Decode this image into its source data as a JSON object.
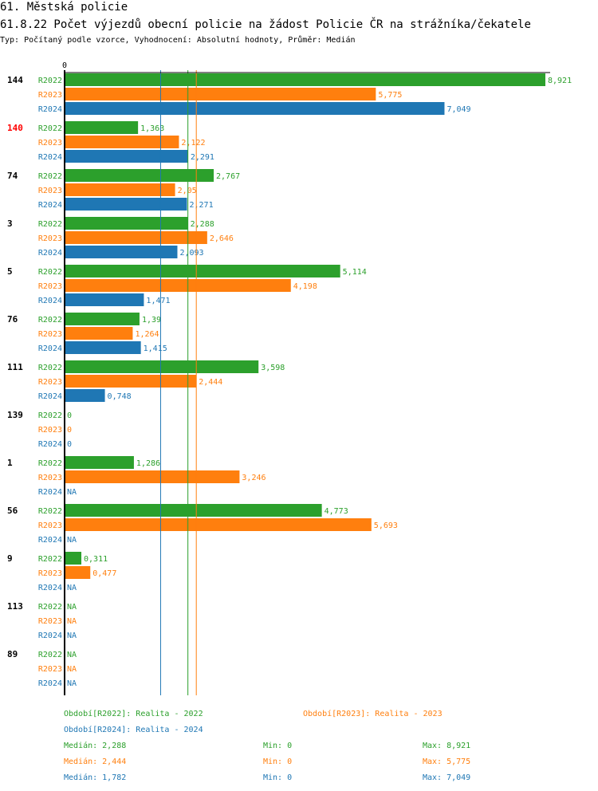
{
  "chart_data": {
    "type": "bar",
    "orientation": "horizontal",
    "title": "61. Městská policie",
    "subtitle": "61.8.22 Počet výjezdů obecní policie na žádost Policie ČR na strážníka/čekatele",
    "description": "Typ: Počítaný podle vzorce, Vyhodnocení: Absolutní hodnoty, Průměr: Medián",
    "axis_zero_label": "0",
    "xlim": [
      0,
      8.921
    ],
    "categories": [
      "144",
      "140",
      "74",
      "3",
      "5",
      "76",
      "111",
      "139",
      "1",
      "56",
      "9",
      "113",
      "89"
    ],
    "highlight_category": "140",
    "series": [
      {
        "name": "R2022",
        "color": "#2ca02c",
        "values": [
          8.921,
          1.363,
          2.767,
          2.288,
          5.114,
          1.39,
          3.598,
          0,
          1.286,
          4.773,
          0.311,
          null,
          null
        ],
        "labels": [
          "8,921",
          "1,363",
          "2,767",
          "2,288",
          "5,114",
          "1,39",
          "3,598",
          "0",
          "1,286",
          "4,773",
          "0,311",
          "NA",
          "NA"
        ]
      },
      {
        "name": "R2023",
        "color": "#ff7f0e",
        "values": [
          5.775,
          2.122,
          2.05,
          2.646,
          4.198,
          1.264,
          2.444,
          0,
          3.246,
          5.693,
          0.477,
          null,
          null
        ],
        "labels": [
          "5,775",
          "2,122",
          "2,05",
          "2,646",
          "4,198",
          "1,264",
          "2,444",
          "0",
          "3,246",
          "5,693",
          "0,477",
          "NA",
          "NA"
        ]
      },
      {
        "name": "R2024",
        "color": "#1f77b4",
        "values": [
          7.049,
          2.291,
          2.271,
          2.093,
          1.471,
          1.415,
          0.748,
          0,
          null,
          null,
          null,
          null,
          null
        ],
        "labels": [
          "7,049",
          "2,291",
          "2,271",
          "2,093",
          "1,471",
          "1,415",
          "0,748",
          "0",
          "NA",
          "NA",
          "NA",
          "NA",
          "NA"
        ]
      }
    ],
    "median_lines": [
      {
        "series": "R2022",
        "value": 2.288,
        "color": "#2ca02c"
      },
      {
        "series": "R2023",
        "value": 2.444,
        "color": "#ff7f0e"
      },
      {
        "series": "R2024",
        "value": 1.782,
        "color": "#1f77b4"
      }
    ],
    "legend": [
      {
        "text": "Období[R2022]: Realita - 2022",
        "color": "#2ca02c"
      },
      {
        "text": "Období[R2023]: Realita - 2023",
        "color": "#ff7f0e"
      },
      {
        "text": "Období[R2024]: Realita - 2024",
        "color": "#1f77b4"
      }
    ],
    "stats": [
      {
        "median": "Medián: 2,288",
        "min": "Min: 0",
        "max": "Max: 8,921",
        "color": "#2ca02c"
      },
      {
        "median": "Medián: 2,444",
        "min": "Min: 0",
        "max": "Max: 5,775",
        "color": "#ff7f0e"
      },
      {
        "median": "Medián: 1,782",
        "min": "Min: 0",
        "max": "Max: 7,049",
        "color": "#1f77b4"
      }
    ]
  }
}
